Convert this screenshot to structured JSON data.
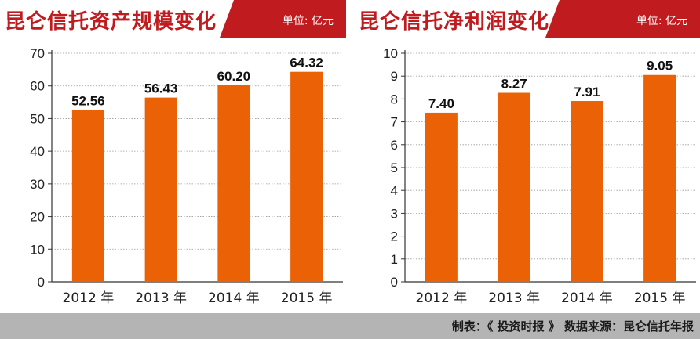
{
  "colors": {
    "bar": "#ea6205",
    "header": "#c01b1f",
    "footer": "#b4b4b4"
  },
  "footer": {
    "text": "制表：《 投资时报 》 数据来源：昆仑信托年报"
  },
  "chart_data": [
    {
      "type": "bar",
      "title": "昆仑信托资产规模变化",
      "unit": "单位: 亿元",
      "categories": [
        "2012 年",
        "2013 年",
        "2014 年",
        "2015 年"
      ],
      "values": [
        52.56,
        56.43,
        60.2,
        64.32
      ],
      "value_labels": [
        "52.56",
        "56.43",
        "60.20",
        "64.32"
      ],
      "ylim": [
        0,
        70
      ],
      "yticks": [
        0,
        10,
        20,
        30,
        40,
        50,
        60,
        70
      ],
      "xlabel": "",
      "ylabel": ""
    },
    {
      "type": "bar",
      "title": "昆仑信托净利润变化",
      "unit": "单位: 亿元",
      "categories": [
        "2012 年",
        "2013 年",
        "2014 年",
        "2015 年"
      ],
      "values": [
        7.4,
        8.27,
        7.91,
        9.05
      ],
      "value_labels": [
        "7.40",
        "8.27",
        "7.91",
        "9.05"
      ],
      "ylim": [
        0,
        10
      ],
      "yticks": [
        0,
        1,
        2,
        3,
        4,
        5,
        6,
        7,
        8,
        9,
        10
      ],
      "xlabel": "",
      "ylabel": ""
    }
  ]
}
